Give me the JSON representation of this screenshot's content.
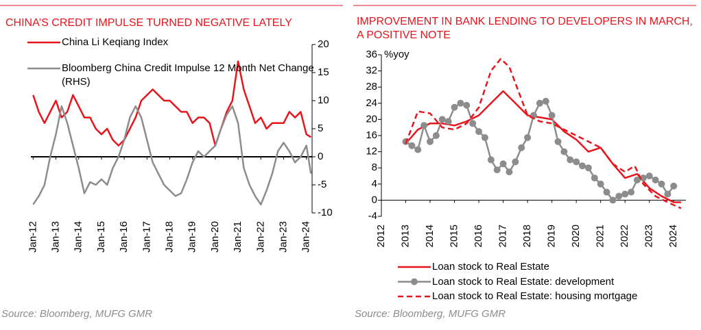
{
  "chart_data": [
    {
      "type": "line",
      "title": "CHINA’S CREDIT IMPULSE TURNED NEGATIVE LATELY",
      "source": "Source: Bloomberg, MUFG GMR",
      "legend": "upper left",
      "y_axis_side": "right",
      "xlim": [
        2011.9,
        2024.25
      ],
      "xticks": [
        {
          "value": 2012,
          "label": "Jan-12"
        },
        {
          "value": 2013,
          "label": "Jan-13"
        },
        {
          "value": 2014,
          "label": "Jan-14"
        },
        {
          "value": 2015,
          "label": "Jan-15"
        },
        {
          "value": 2016,
          "label": "Jan-16"
        },
        {
          "value": 2017,
          "label": "Jan-17"
        },
        {
          "value": 2018,
          "label": "Jan-18"
        },
        {
          "value": 2019,
          "label": "Jan-19"
        },
        {
          "value": 2020,
          "label": "Jan-20"
        },
        {
          "value": 2021,
          "label": "Jan-21"
        },
        {
          "value": 2022,
          "label": "Jan-22"
        },
        {
          "value": 2023,
          "label": "Jan-23"
        },
        {
          "value": 2024,
          "label": "Jan-24"
        }
      ],
      "ylim": [
        -10,
        20
      ],
      "yticks": [
        -10,
        -5,
        0,
        5,
        10,
        15,
        20
      ],
      "series": [
        {
          "name": "China Li Keqiang Index",
          "color": "#e8141b",
          "width": 2.5,
          "x": [
            2012,
            2012.25,
            2012.5,
            2012.75,
            2013,
            2013.25,
            2013.5,
            2013.75,
            2014,
            2014.25,
            2014.5,
            2014.75,
            2015,
            2015.25,
            2015.5,
            2015.75,
            2016,
            2016.25,
            2016.5,
            2016.75,
            2017,
            2017.25,
            2017.5,
            2017.75,
            2018,
            2018.25,
            2018.5,
            2018.75,
            2019,
            2019.25,
            2019.5,
            2019.75,
            2020,
            2020.25,
            2020.5,
            2020.75,
            2021,
            2021.25,
            2021.5,
            2021.75,
            2022,
            2022.25,
            2022.5,
            2022.75,
            2023,
            2023.25,
            2023.5,
            2023.75,
            2024,
            2024.2
          ],
          "values": [
            11,
            8,
            6,
            8,
            10,
            7,
            8,
            11,
            9,
            7,
            7,
            5,
            4,
            5,
            3,
            2,
            3,
            5,
            7,
            10,
            11,
            12,
            11,
            10,
            10,
            9,
            8,
            8,
            6,
            7,
            7,
            6,
            2,
            5,
            8,
            10,
            17,
            12,
            9,
            6,
            7,
            5,
            6,
            6,
            6,
            8,
            7,
            8,
            4,
            3.5
          ]
        },
        {
          "name": "Bloomberg China Credit Impulse 12 Month Net Change (RHS)",
          "color": "#8c8c8c",
          "width": 2.5,
          "x": [
            2012,
            2012.25,
            2012.5,
            2012.75,
            2013,
            2013.25,
            2013.5,
            2013.75,
            2014,
            2014.25,
            2014.5,
            2014.75,
            2015,
            2015.25,
            2015.5,
            2015.75,
            2016,
            2016.25,
            2016.5,
            2016.75,
            2017,
            2017.25,
            2017.5,
            2017.75,
            2018,
            2018.25,
            2018.5,
            2018.75,
            2019,
            2019.25,
            2019.5,
            2019.75,
            2020,
            2020.25,
            2020.5,
            2020.75,
            2021,
            2021.25,
            2021.5,
            2021.75,
            2022,
            2022.25,
            2022.5,
            2022.75,
            2023,
            2023.25,
            2023.5,
            2023.75,
            2024,
            2024.2
          ],
          "values": [
            -8.5,
            -7,
            -5,
            0,
            4,
            9,
            6,
            2,
            -2,
            -6.5,
            -4.5,
            -5,
            -4,
            -5,
            -2,
            0,
            3,
            7,
            9,
            7,
            3,
            -1,
            -3,
            -5,
            -6,
            -7,
            -6.5,
            -4,
            -1,
            1,
            0,
            1,
            2,
            5,
            7.5,
            9,
            6,
            -2,
            -5,
            -7,
            -8.5,
            -6,
            -3,
            1,
            2.5,
            1,
            -1,
            0,
            2,
            -3
          ]
        }
      ]
    },
    {
      "type": "line",
      "title": "IMPROVEMENT IN BANK LENDING TO DEVELOPERS IN MARCH, A POSITIVE NOTE",
      "source": "Source: Bloomberg, MUFG GMR",
      "ylabel": "%yoy",
      "legend": "bottom",
      "y_axis_side": "left",
      "xlim": [
        2012,
        2024.5
      ],
      "xticks": [
        2012,
        2013,
        2014,
        2015,
        2016,
        2017,
        2018,
        2019,
        2020,
        2021,
        2022,
        2023,
        2024
      ],
      "ylim": [
        -4,
        36
      ],
      "yticks": [
        -4,
        0,
        4,
        8,
        12,
        16,
        20,
        24,
        28,
        32,
        36
      ],
      "series": [
        {
          "name": "Loan stock to Real Estate",
          "color": "#e8141b",
          "width": 2.5,
          "x": [
            2013,
            2013.5,
            2014,
            2014.5,
            2015,
            2015.5,
            2016,
            2016.5,
            2017,
            2017.5,
            2018,
            2018.5,
            2019,
            2019.5,
            2020,
            2020.5,
            2021,
            2021.5,
            2022,
            2022.5,
            2023,
            2023.5,
            2024,
            2024.3
          ],
          "values": [
            14,
            17.5,
            19,
            19,
            18.5,
            19.5,
            21,
            24,
            27,
            24,
            21,
            20.5,
            20,
            17,
            15,
            12,
            13,
            9,
            5.5,
            6.5,
            3,
            1,
            -0.5,
            -0.5
          ]
        },
        {
          "name": "Loan stock to Real Estate: development",
          "color": "#8c8c8c",
          "width": 2.5,
          "marker": true,
          "x": [
            2013,
            2013.25,
            2013.5,
            2013.75,
            2014,
            2014.25,
            2014.5,
            2014.75,
            2015,
            2015.25,
            2015.5,
            2015.75,
            2016,
            2016.25,
            2016.5,
            2016.75,
            2017,
            2017.25,
            2017.5,
            2017.75,
            2018,
            2018.25,
            2018.5,
            2018.75,
            2019,
            2019.25,
            2019.5,
            2019.75,
            2020,
            2020.25,
            2020.5,
            2020.75,
            2021,
            2021.25,
            2021.5,
            2021.75,
            2022,
            2022.25,
            2022.5,
            2022.75,
            2023,
            2023.25,
            2023.5,
            2023.75,
            2024
          ],
          "values": [
            14.5,
            13.5,
            12.5,
            18.5,
            14.5,
            16,
            20,
            19.5,
            23,
            24,
            23.5,
            19,
            17,
            15.5,
            10,
            7.5,
            9,
            7,
            9.5,
            13,
            15.5,
            21,
            24,
            24.5,
            21,
            14.5,
            12,
            10,
            9.5,
            8.5,
            8,
            5.5,
            4,
            2,
            0,
            1,
            1.5,
            2,
            5,
            5.5,
            6,
            5,
            4,
            1.5,
            3.5
          ]
        },
        {
          "name": "Loan stock to Real Estate: housing mortgage",
          "color": "#e8141b",
          "width": 2.5,
          "dash": true,
          "x": [
            2013,
            2013.5,
            2014,
            2014.5,
            2015,
            2015.5,
            2016,
            2016.5,
            2016.9,
            2017.25,
            2017.75,
            2018,
            2018.5,
            2019,
            2019.5,
            2020,
            2020.5,
            2021,
            2021.5,
            2022,
            2022.4,
            2022.75,
            2023.25,
            2023.75,
            2024.3
          ],
          "values": [
            14,
            22,
            21.5,
            18,
            17.5,
            19,
            23,
            32,
            35,
            33,
            25,
            21,
            19.5,
            19,
            17.5,
            16,
            14.5,
            13,
            9,
            7,
            8.5,
            4,
            1,
            -0.5,
            -2
          ]
        }
      ]
    }
  ]
}
